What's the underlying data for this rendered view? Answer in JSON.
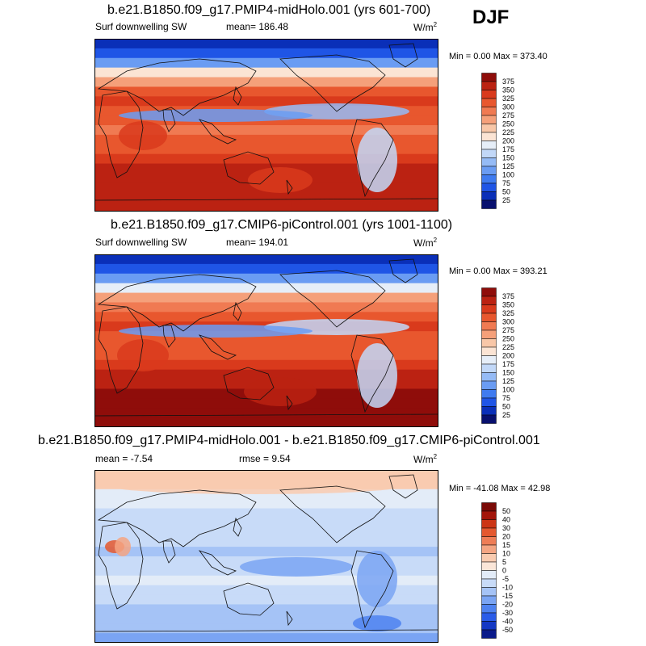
{
  "season": "DJF",
  "colors": {
    "abs_scale": [
      "#08106e",
      "#0a2fb8",
      "#1f55e6",
      "#3f7bf0",
      "#6a9cf3",
      "#95bbf6",
      "#c2d8f8",
      "#e6eef8",
      "#fbe4d4",
      "#f8c7a8",
      "#f5a07a",
      "#f07a52",
      "#e8572e",
      "#d93a1c",
      "#bb2212",
      "#8f0d0a"
    ],
    "diff_scale": [
      "#0a1a8a",
      "#1438c4",
      "#2a5ce8",
      "#4e82f0",
      "#7aa4f3",
      "#a5c3f6",
      "#c8dbf8",
      "#e3ecf8",
      "#fbe6d8",
      "#f9cbb0",
      "#f4a583",
      "#ee7d56",
      "#e4582f",
      "#cc3515",
      "#a3150a",
      "#7a0a06"
    ]
  },
  "chart_data": [
    {
      "type": "heatmap",
      "title": "b.e21.B1850.f09_g17.PMIP4-midHolo.001 (yrs 601-700)",
      "variable": "Surf downwelling SW",
      "mean_label": "mean= 186.48",
      "units_label": "W/m",
      "units_superscript": "2",
      "minmax_label": "Min =   0.00 Max = 373.40",
      "min": 0.0,
      "max": 373.4,
      "mean": 186.48,
      "colorbar_levels": [
        "375",
        "350",
        "325",
        "300",
        "275",
        "250",
        "225",
        "200",
        "175",
        "150",
        "125",
        "100",
        "75",
        "50",
        "25"
      ],
      "latitude_band_values": [
        30,
        60,
        120,
        200,
        260,
        300,
        330,
        315,
        300,
        290,
        300,
        320,
        340,
        360,
        360,
        355,
        355,
        350
      ],
      "latitude_range": [
        90,
        -90
      ]
    },
    {
      "type": "heatmap",
      "title": "b.e21.B1850.f09_g17.CMIP6-piControl.001 (yrs 1001-1100)",
      "variable": "Surf downwelling SW",
      "mean_label": "mean= 194.01",
      "units_label": "W/m",
      "units_superscript": "2",
      "minmax_label": "Min =   0.00 Max = 393.21",
      "min": 0.0,
      "max": 393.21,
      "mean": 194.01,
      "colorbar_levels": [
        "375",
        "350",
        "325",
        "300",
        "275",
        "250",
        "225",
        "200",
        "175",
        "150",
        "125",
        "100",
        "75",
        "50",
        "25"
      ],
      "latitude_band_values": [
        25,
        50,
        110,
        190,
        250,
        290,
        320,
        330,
        320,
        300,
        310,
        330,
        350,
        370,
        375,
        380,
        390,
        385
      ],
      "latitude_range": [
        90,
        -90
      ]
    },
    {
      "type": "heatmap",
      "title": "b.e21.B1850.f09_g17.PMIP4-midHolo.001 - b.e21.B1850.f09_g17.CMIP6-piControl.001",
      "mean_label": "mean =  -7.54",
      "rmse_label": "rmse =   9.54",
      "units_label": "W/m",
      "units_superscript": "2",
      "minmax_label": "Min = -41.08 Max =  42.98",
      "min": -41.08,
      "max": 42.98,
      "mean": -7.54,
      "rmse": 9.54,
      "colorbar_levels": [
        "50",
        "40",
        "30",
        "20",
        "15",
        "10",
        "5",
        "0",
        "-5",
        "-10",
        "-15",
        "-20",
        "-30",
        "-40",
        "-50"
      ],
      "latitude_band_values": [
        5,
        8,
        -3,
        -5,
        -8,
        -10,
        -6,
        -8,
        -12,
        -10,
        -7,
        -5,
        -8,
        -10,
        -12,
        -14,
        -15,
        -20
      ],
      "latitude_range": [
        90,
        -90
      ]
    }
  ]
}
